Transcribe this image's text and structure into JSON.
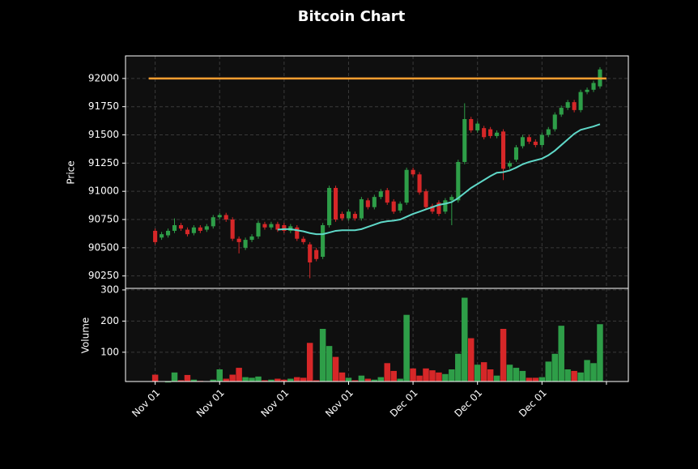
{
  "chart_data": {
    "type": "candlestick",
    "title": "Bitcoin Chart",
    "ylabel": "Price",
    "volume_label": "Volume",
    "up_color": "#2e9e48",
    "down_color": "#d62728",
    "grid": true,
    "xlim": [
      -4.6,
      73.4
    ],
    "xticks": [
      {
        "value": 0,
        "label": "Nov 01"
      },
      {
        "value": 10,
        "label": "Nov 01"
      },
      {
        "value": 20,
        "label": "Nov 01"
      },
      {
        "value": 30,
        "label": "Nov 01"
      },
      {
        "value": 40,
        "label": "Dec 01"
      },
      {
        "value": 50,
        "label": "Dec 01"
      },
      {
        "value": 60,
        "label": "Dec 01"
      },
      {
        "value": 70,
        "label": ""
      }
    ],
    "ylim": [
      90140,
      92200
    ],
    "yticks": [
      90250,
      90500,
      90750,
      91000,
      91250,
      91500,
      91750,
      92000
    ],
    "volume_ylim": [
      6,
      305
    ],
    "volume_yticks": [
      100,
      200,
      300
    ],
    "open": [
      90650,
      90590,
      90610,
      90650,
      90700,
      90660,
      90630,
      90680,
      90660,
      90690,
      90770,
      90790,
      90750,
      90580,
      90500,
      90570,
      90600,
      90710,
      90680,
      90710,
      90700,
      90650,
      90680,
      90580,
      90530,
      90480,
      90420,
      90700,
      91030,
      90800,
      90760,
      90800,
      90760,
      90920,
      90860,
      90950,
      91010,
      90910,
      90830,
      90900,
      91190,
      91150,
      91000,
      90870,
      90900,
      90820,
      90920,
      90920,
      91260,
      91640,
      91540,
      91560,
      91550,
      91490,
      91530,
      91220,
      91280,
      91400,
      91480,
      91440,
      91410,
      91500,
      91550,
      91680,
      91740,
      91790,
      91720,
      91880,
      91900,
      91930
    ],
    "high": [
      90670,
      90640,
      90670,
      90760,
      90720,
      90680,
      90700,
      90700,
      90710,
      90790,
      90810,
      90810,
      90770,
      90600,
      90590,
      90620,
      90740,
      90730,
      90730,
      90730,
      90720,
      90710,
      90700,
      90600,
      90550,
      90500,
      90720,
      91050,
      91050,
      90820,
      90840,
      90820,
      90950,
      90940,
      90970,
      91020,
      91030,
      90930,
      90910,
      91210,
      91210,
      91170,
      91020,
      90890,
      90920,
      90940,
      90970,
      91280,
      91780,
      91660,
      91620,
      91580,
      91570,
      91540,
      91550,
      91270,
      91410,
      91500,
      91500,
      91460,
      91520,
      91570,
      91700,
      91760,
      91810,
      91810,
      91900,
      91920,
      91980,
      92100
    ],
    "low": [
      90530,
      90570,
      90590,
      90630,
      90650,
      90600,
      90610,
      90630,
      90640,
      90670,
      90750,
      90730,
      90560,
      90450,
      90480,
      90550,
      90580,
      90660,
      90660,
      90640,
      90630,
      90630,
      90560,
      90530,
      90230,
      90380,
      90400,
      90680,
      90730,
      90740,
      90740,
      90740,
      90740,
      90840,
      90840,
      90930,
      90880,
      90800,
      90810,
      90880,
      91130,
      90970,
      90840,
      90800,
      90780,
      90800,
      90700,
      90900,
      91240,
      91520,
      91520,
      91460,
      91470,
      91470,
      91100,
      91200,
      91260,
      91380,
      91420,
      91390,
      91390,
      91480,
      91530,
      91660,
      91720,
      91700,
      91700,
      91860,
      91880,
      91910
    ],
    "close": [
      90550,
      90620,
      90650,
      90700,
      90670,
      90620,
      90680,
      90650,
      90690,
      90770,
      90790,
      90750,
      90580,
      90550,
      90570,
      90600,
      90720,
      90680,
      90710,
      90660,
      90650,
      90690,
      90580,
      90550,
      90370,
      90400,
      90700,
      91030,
      90750,
      90760,
      90820,
      90760,
      90930,
      90860,
      90950,
      91000,
      90900,
      90820,
      90890,
      91190,
      91150,
      90990,
      90860,
      90820,
      90800,
      90920,
      90950,
      91260,
      91640,
      91540,
      91600,
      91480,
      91490,
      91520,
      91200,
      91250,
      91390,
      91480,
      91440,
      91410,
      91500,
      91550,
      91680,
      91740,
      91790,
      91720,
      91880,
      91900,
      91960,
      92080
    ],
    "volume": [
      28,
      5,
      3,
      35,
      10,
      27,
      12,
      8,
      6,
      12,
      45,
      15,
      28,
      50,
      20,
      18,
      22,
      10,
      12,
      15,
      12,
      15,
      20,
      18,
      130,
      10,
      175,
      120,
      85,
      35,
      18,
      10,
      25,
      15,
      12,
      20,
      65,
      40,
      15,
      220,
      48,
      25,
      48,
      42,
      35,
      30,
      45,
      95,
      275,
      145,
      60,
      68,
      45,
      25,
      175,
      60,
      50,
      40,
      18,
      18,
      20,
      70,
      95,
      185,
      45,
      40,
      35,
      75,
      65,
      190
    ],
    "ma": {
      "color": "#5fd8c8",
      "values": [
        null,
        null,
        null,
        null,
        null,
        null,
        null,
        null,
        null,
        null,
        null,
        null,
        null,
        null,
        null,
        null,
        null,
        null,
        null,
        90660,
        90665,
        90665,
        90655,
        90645,
        90630,
        90620,
        90620,
        90635,
        90650,
        90655,
        90655,
        90655,
        90665,
        90685,
        90705,
        90725,
        90735,
        90740,
        90750,
        90775,
        90800,
        90820,
        90840,
        90860,
        90880,
        90890,
        90905,
        90940,
        90985,
        91030,
        91065,
        91100,
        91135,
        91165,
        91170,
        91185,
        91210,
        91240,
        91260,
        91275,
        91290,
        91320,
        91360,
        91410,
        91460,
        91510,
        91545,
        91560,
        91575,
        91595
      ]
    },
    "hline": {
      "value": 92000,
      "color": "#ff9f30"
    }
  }
}
